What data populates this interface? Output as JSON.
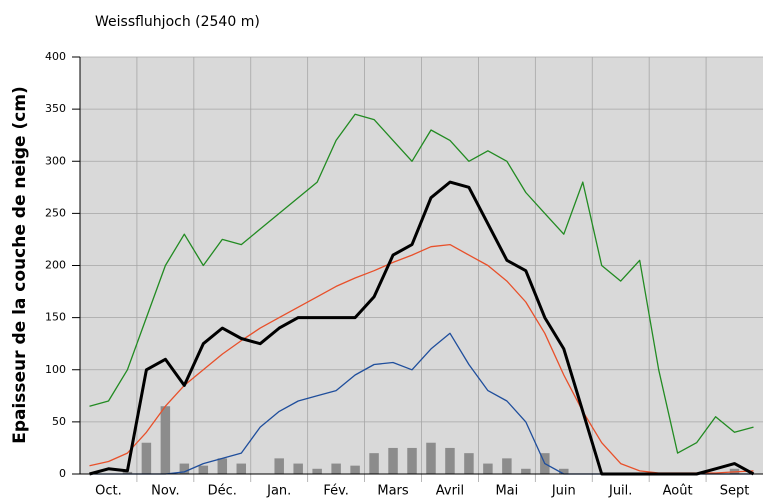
{
  "chart_data": {
    "type": "line",
    "title": "Weissfluhjoch (2540 m)",
    "y_label": "Epaisseur de la couche de neige (cm)",
    "categories": [
      null,
      "Oct.",
      null,
      null,
      "Nov.",
      null,
      null,
      "Déc.",
      null,
      null,
      "Jan.",
      null,
      null,
      "Fév.",
      null,
      null,
      "Mars",
      null,
      null,
      "Avril",
      null,
      null,
      "Mai",
      null,
      null,
      "Juin",
      null,
      null,
      "Juil.",
      null,
      null,
      "Août",
      null,
      null,
      "Sept",
      null
    ],
    "series": [
      {
        "type": "bar",
        "color": "#8c8c8c",
        "values": [
          0,
          0,
          2,
          30,
          65,
          10,
          8,
          15,
          10,
          0,
          15,
          10,
          5,
          10,
          8,
          20,
          25,
          25,
          30,
          25,
          20,
          10,
          15,
          5,
          20,
          5,
          0,
          0,
          0,
          0,
          0,
          0,
          0,
          0,
          5,
          0
        ]
      },
      {
        "type": "line",
        "color": "#228b22",
        "values": [
          65,
          70,
          100,
          150,
          200,
          230,
          200,
          225,
          220,
          235,
          250,
          265,
          280,
          320,
          345,
          340,
          320,
          300,
          330,
          320,
          300,
          310,
          300,
          270,
          250,
          230,
          280,
          200,
          185,
          205,
          100,
          20,
          30,
          55,
          40,
          45
        ]
      },
      {
        "type": "line",
        "color": "#e8502a",
        "values": [
          8,
          12,
          20,
          40,
          65,
          85,
          100,
          115,
          128,
          140,
          150,
          160,
          170,
          180,
          188,
          195,
          203,
          210,
          218,
          220,
          210,
          200,
          185,
          165,
          135,
          95,
          60,
          30,
          10,
          3,
          1,
          1,
          1,
          1,
          2,
          3
        ]
      },
      {
        "type": "line",
        "color": "#1f4e9c",
        "values": [
          0,
          0,
          0,
          0,
          0,
          2,
          10,
          15,
          20,
          45,
          60,
          70,
          75,
          80,
          95,
          105,
          107,
          100,
          120,
          135,
          105,
          80,
          70,
          50,
          10,
          0,
          0,
          0,
          0,
          0,
          0,
          0,
          0,
          0,
          0,
          0
        ]
      },
      {
        "type": "line",
        "color": "#000000",
        "width": 3,
        "values": [
          0,
          5,
          3,
          100,
          110,
          85,
          125,
          140,
          130,
          125,
          140,
          150,
          150,
          150,
          150,
          170,
          210,
          220,
          265,
          280,
          275,
          240,
          205,
          195,
          150,
          120,
          60,
          0,
          0,
          0,
          0,
          0,
          0,
          5,
          10,
          0
        ]
      }
    ],
    "ylim": [
      0,
      400
    ],
    "yticks": [
      0,
      50,
      100,
      150,
      200,
      250,
      300,
      350,
      400
    ],
    "grid": true
  }
}
